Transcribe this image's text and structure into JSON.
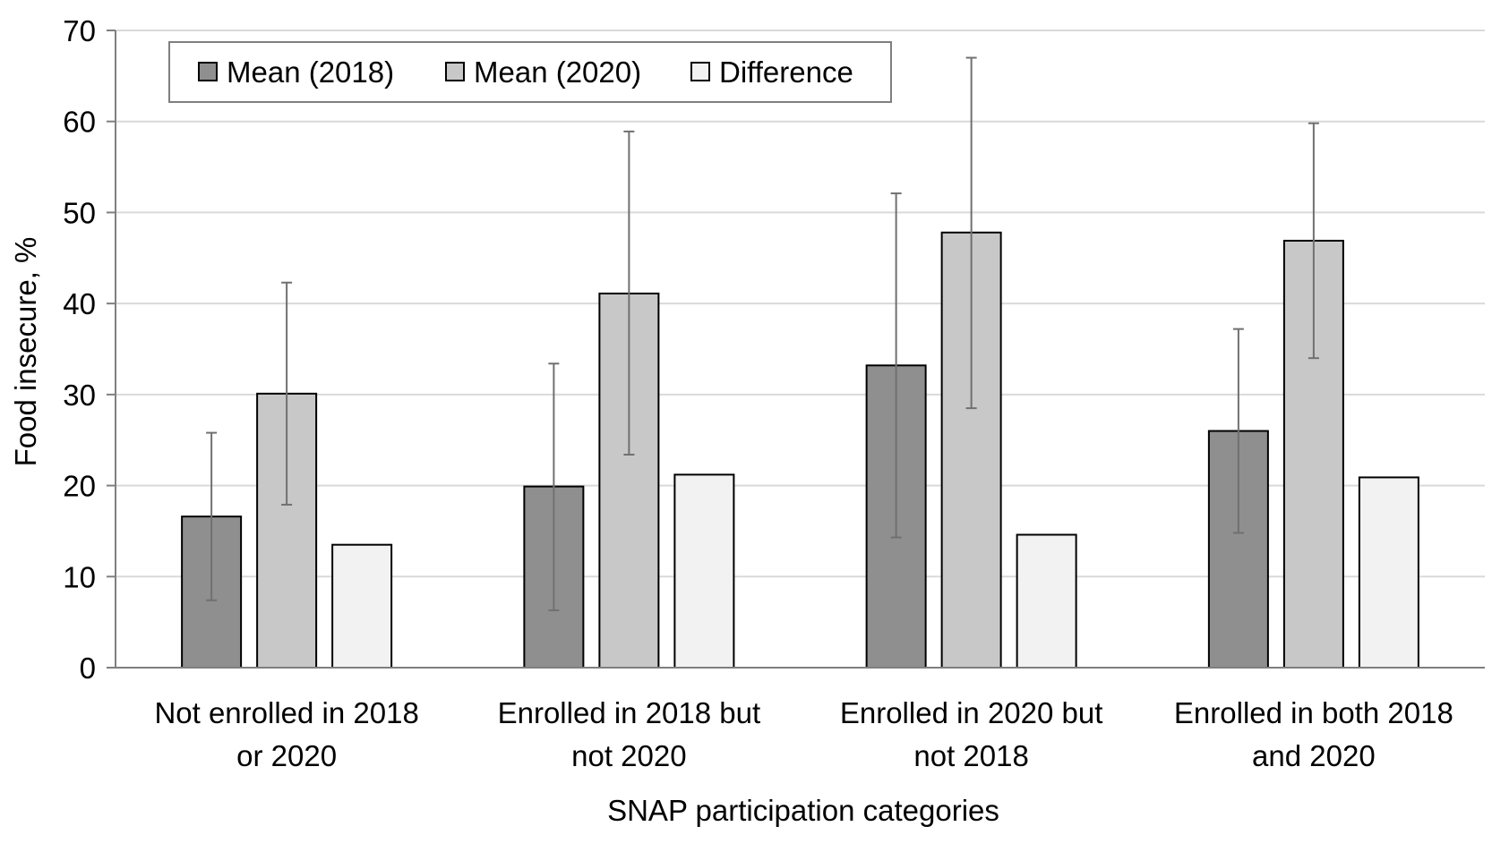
{
  "chart_data": {
    "type": "bar",
    "ylabel": "Food insecure, %",
    "xlabel": "SNAP participation categories",
    "ylim": [
      0,
      70
    ],
    "yticks": [
      0,
      10,
      20,
      30,
      40,
      50,
      60,
      70
    ],
    "grid": true,
    "legend_position": "top-left",
    "categories": [
      [
        "Not enrolled in 2018",
        "or 2020"
      ],
      [
        "Enrolled in 2018 but",
        "not 2020"
      ],
      [
        "Enrolled in 2020 but",
        "not 2018"
      ],
      [
        "Enrolled in both 2018",
        "and 2020"
      ]
    ],
    "series": [
      {
        "name": "Mean (2018)",
        "color": "#8f8f8f",
        "values": [
          16.6,
          19.9,
          33.2,
          26.0
        ],
        "error_low": [
          7.4,
          6.3,
          14.3,
          14.8
        ],
        "error_high": [
          25.8,
          33.4,
          52.1,
          37.2
        ]
      },
      {
        "name": "Mean (2020)",
        "color": "#c8c8c8",
        "values": [
          30.1,
          41.1,
          47.8,
          46.9
        ],
        "error_low": [
          17.9,
          23.4,
          28.5,
          34.0
        ],
        "error_high": [
          42.3,
          58.9,
          67.0,
          59.8
        ]
      },
      {
        "name": "Difference",
        "color": "#f2f2f2",
        "values": [
          13.5,
          21.2,
          14.6,
          20.9
        ]
      }
    ]
  }
}
